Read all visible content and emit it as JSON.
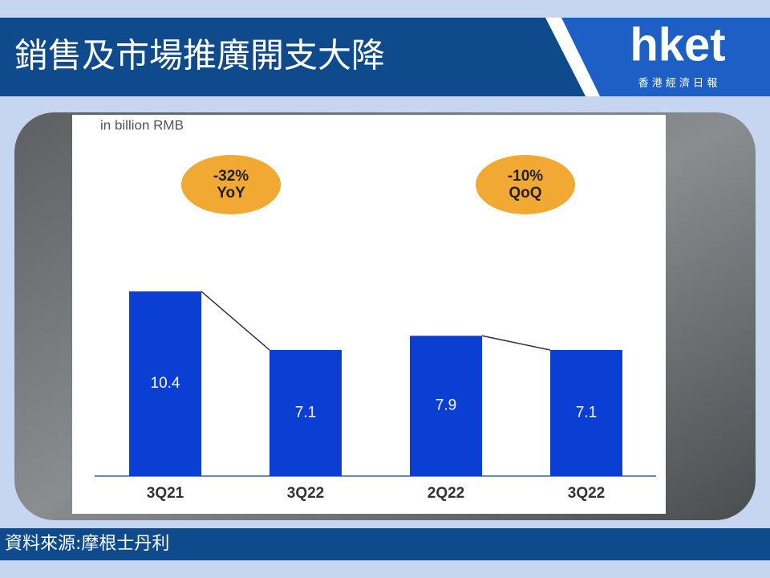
{
  "header": {
    "title": "銷售及市場推廣開支大降",
    "logo": "hket",
    "logo_subtitle": "香 港 經 濟 日 報"
  },
  "chart_data": {
    "type": "bar",
    "unit_label": "in billion RMB",
    "categories": [
      "3Q21",
      "3Q22",
      "2Q22",
      "3Q22"
    ],
    "values": [
      10.4,
      7.1,
      7.9,
      7.1
    ],
    "color": "#0b3fd4",
    "annotations": [
      [
        "-32%",
        "YoY"
      ],
      [
        "-10%",
        "QoQ"
      ]
    ],
    "annotation_color": "#f2a933"
  },
  "footer": {
    "source": "資料來源:摩根士丹利"
  }
}
